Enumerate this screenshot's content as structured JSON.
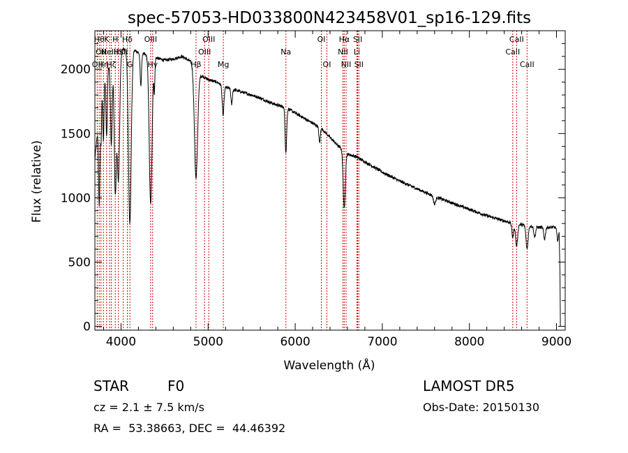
{
  "chart_data": {
    "type": "line",
    "title": "spec-57053-HD033800N423458V01_sp16-129.fits",
    "xlabel": "Wavelength (Å)",
    "ylabel": "Flux (relative)",
    "xlim": [
      3700,
      9100
    ],
    "ylim": [
      -30,
      2300
    ],
    "xticks": [
      "4000",
      "5000",
      "6000",
      "7000",
      "8000",
      "9000"
    ],
    "yticks": [
      "0",
      "500",
      "1000",
      "1500",
      "2000"
    ],
    "grid": false,
    "continuum": [
      [
        3700,
        1300
      ],
      [
        3780,
        1850
      ],
      [
        3850,
        2020
      ],
      [
        3920,
        2090
      ],
      [
        3960,
        2130
      ],
      [
        4000,
        2150
      ],
      [
        4050,
        2160
      ],
      [
        4100,
        2160
      ],
      [
        4150,
        2150
      ],
      [
        4200,
        2130
      ],
      [
        4300,
        2110
      ],
      [
        4400,
        2090
      ],
      [
        4500,
        2070
      ],
      [
        4600,
        2080
      ],
      [
        4700,
        2100
      ],
      [
        4800,
        2060
      ],
      [
        4900,
        1960
      ],
      [
        5000,
        1920
      ],
      [
        5100,
        1900
      ],
      [
        5200,
        1860
      ],
      [
        5300,
        1840
      ],
      [
        5400,
        1820
      ],
      [
        5500,
        1800
      ],
      [
        5600,
        1775
      ],
      [
        5700,
        1745
      ],
      [
        5800,
        1720
      ],
      [
        5900,
        1700
      ],
      [
        6000,
        1660
      ],
      [
        6100,
        1620
      ],
      [
        6200,
        1580
      ],
      [
        6300,
        1540
      ],
      [
        6400,
        1470
      ],
      [
        6500,
        1400
      ],
      [
        6600,
        1340
      ],
      [
        6700,
        1320
      ],
      [
        6800,
        1280
      ],
      [
        7000,
        1200
      ],
      [
        7200,
        1130
      ],
      [
        7400,
        1070
      ],
      [
        7600,
        1010
      ],
      [
        7800,
        960
      ],
      [
        8000,
        910
      ],
      [
        8200,
        860
      ],
      [
        8400,
        820
      ],
      [
        8500,
        800
      ],
      [
        8600,
        790
      ],
      [
        8700,
        780
      ],
      [
        8800,
        770
      ],
      [
        8900,
        770
      ],
      [
        9000,
        770
      ],
      [
        9030,
        770
      ]
    ],
    "absorption": [
      [
        3750,
        700,
        8
      ],
      [
        3771,
        350,
        6
      ],
      [
        3798,
        450,
        7
      ],
      [
        3835,
        500,
        8
      ],
      [
        3889,
        650,
        10
      ],
      [
        3934,
        1050,
        12
      ],
      [
        3970,
        1000,
        14
      ],
      [
        4101,
        1350,
        16
      ],
      [
        4227,
        250,
        8
      ],
      [
        4340,
        1150,
        16
      ],
      [
        4383,
        250,
        6
      ],
      [
        4861,
        850,
        18
      ],
      [
        5172,
        230,
        10
      ],
      [
        5270,
        120,
        8
      ],
      [
        5893,
        350,
        9
      ],
      [
        6280,
        120,
        8
      ],
      [
        6563,
        450,
        12
      ],
      [
        7600,
        60,
        12
      ],
      [
        8498,
        110,
        10
      ],
      [
        8542,
        170,
        12
      ],
      [
        8662,
        180,
        12
      ],
      [
        8750,
        80,
        10
      ],
      [
        8863,
        90,
        10
      ],
      [
        9015,
        100,
        10
      ]
    ],
    "noise_amplitude": 12,
    "tail": [
      [
        9030,
        770
      ],
      [
        9040,
        420
      ],
      [
        9045,
        0
      ]
    ],
    "line_markers": [
      {
        "wavelength": 3727,
        "labels": [
          "OII"
        ],
        "row": 3
      },
      {
        "wavelength": 3750,
        "labels": [
          "Hθ"
        ],
        "row": 1
      },
      {
        "wavelength": 3770,
        "labels": [
          "OII"
        ],
        "row": 2
      },
      {
        "wavelength": 3798,
        "labels": [
          "Hη"
        ],
        "row": 3
      },
      {
        "wavelength": 3835,
        "labels": [
          "K"
        ],
        "row": 1
      },
      {
        "wavelength": 3869,
        "labels": [
          "NeIII"
        ],
        "row": 2
      },
      {
        "wavelength": 3889,
        "labels": [
          "Hζ"
        ],
        "row": 3
      },
      {
        "wavelength": 3934,
        "labels": [
          "H"
        ],
        "row": 1
      },
      {
        "wavelength": 3970,
        "labels": [
          "Hε"
        ],
        "row": 2
      },
      {
        "wavelength": 4026,
        "labels": [
          "SII"
        ],
        "row": 2
      },
      {
        "wavelength": 4072,
        "labels": [
          "Hδ"
        ],
        "row": 1
      },
      {
        "wavelength": 4102,
        "labels": [
          "G"
        ],
        "row": 3
      },
      {
        "wavelength": 4340,
        "labels": [
          "OIII"
        ],
        "row": 1
      },
      {
        "wavelength": 4363,
        "labels": [
          "Hγ"
        ],
        "row": 3
      },
      {
        "wavelength": 4861,
        "labels": [
          "Hβ"
        ],
        "row": 3
      },
      {
        "wavelength": 4959,
        "labels": [
          "OIII"
        ],
        "row": 2
      },
      {
        "wavelength": 5007,
        "labels": [
          "OIII"
        ],
        "row": 1
      },
      {
        "wavelength": 5175,
        "labels": [
          "Mg"
        ],
        "row": 3
      },
      {
        "wavelength": 5893,
        "labels": [
          "Na"
        ],
        "row": 2
      },
      {
        "wavelength": 6300,
        "labels": [
          "OI"
        ],
        "row": 1
      },
      {
        "wavelength": 6364,
        "labels": [
          "OI"
        ],
        "row": 3
      },
      {
        "wavelength": 6548,
        "labels": [
          "NII"
        ],
        "row": 2
      },
      {
        "wavelength": 6563,
        "labels": [
          "Hα"
        ],
        "row": 1
      },
      {
        "wavelength": 6584,
        "labels": [
          "NII"
        ],
        "row": 3
      },
      {
        "wavelength": 6708,
        "labels": [
          "Li"
        ],
        "row": 2
      },
      {
        "wavelength": 6717,
        "labels": [
          "SII"
        ],
        "row": 1
      },
      {
        "wavelength": 6731,
        "labels": [
          "SII"
        ],
        "row": 3
      },
      {
        "wavelength": 8498,
        "labels": [
          "CaII"
        ],
        "row": 2
      },
      {
        "wavelength": 8542,
        "labels": [
          "CaII"
        ],
        "row": 1
      },
      {
        "wavelength": 8662,
        "labels": [
          "CaII"
        ],
        "row": 3
      }
    ],
    "marker_color": "#cc0000",
    "spectrum_color": "#000000"
  },
  "info": {
    "object_class": "STAR",
    "subclass": "F0",
    "survey": "LAMOST DR5",
    "redshift": "cz = 2.1 ± 7.5 km/s",
    "obs_date": "Obs-Date: 20150130",
    "coordinates": "RA =  53.38663, DEC =  44.46392"
  }
}
